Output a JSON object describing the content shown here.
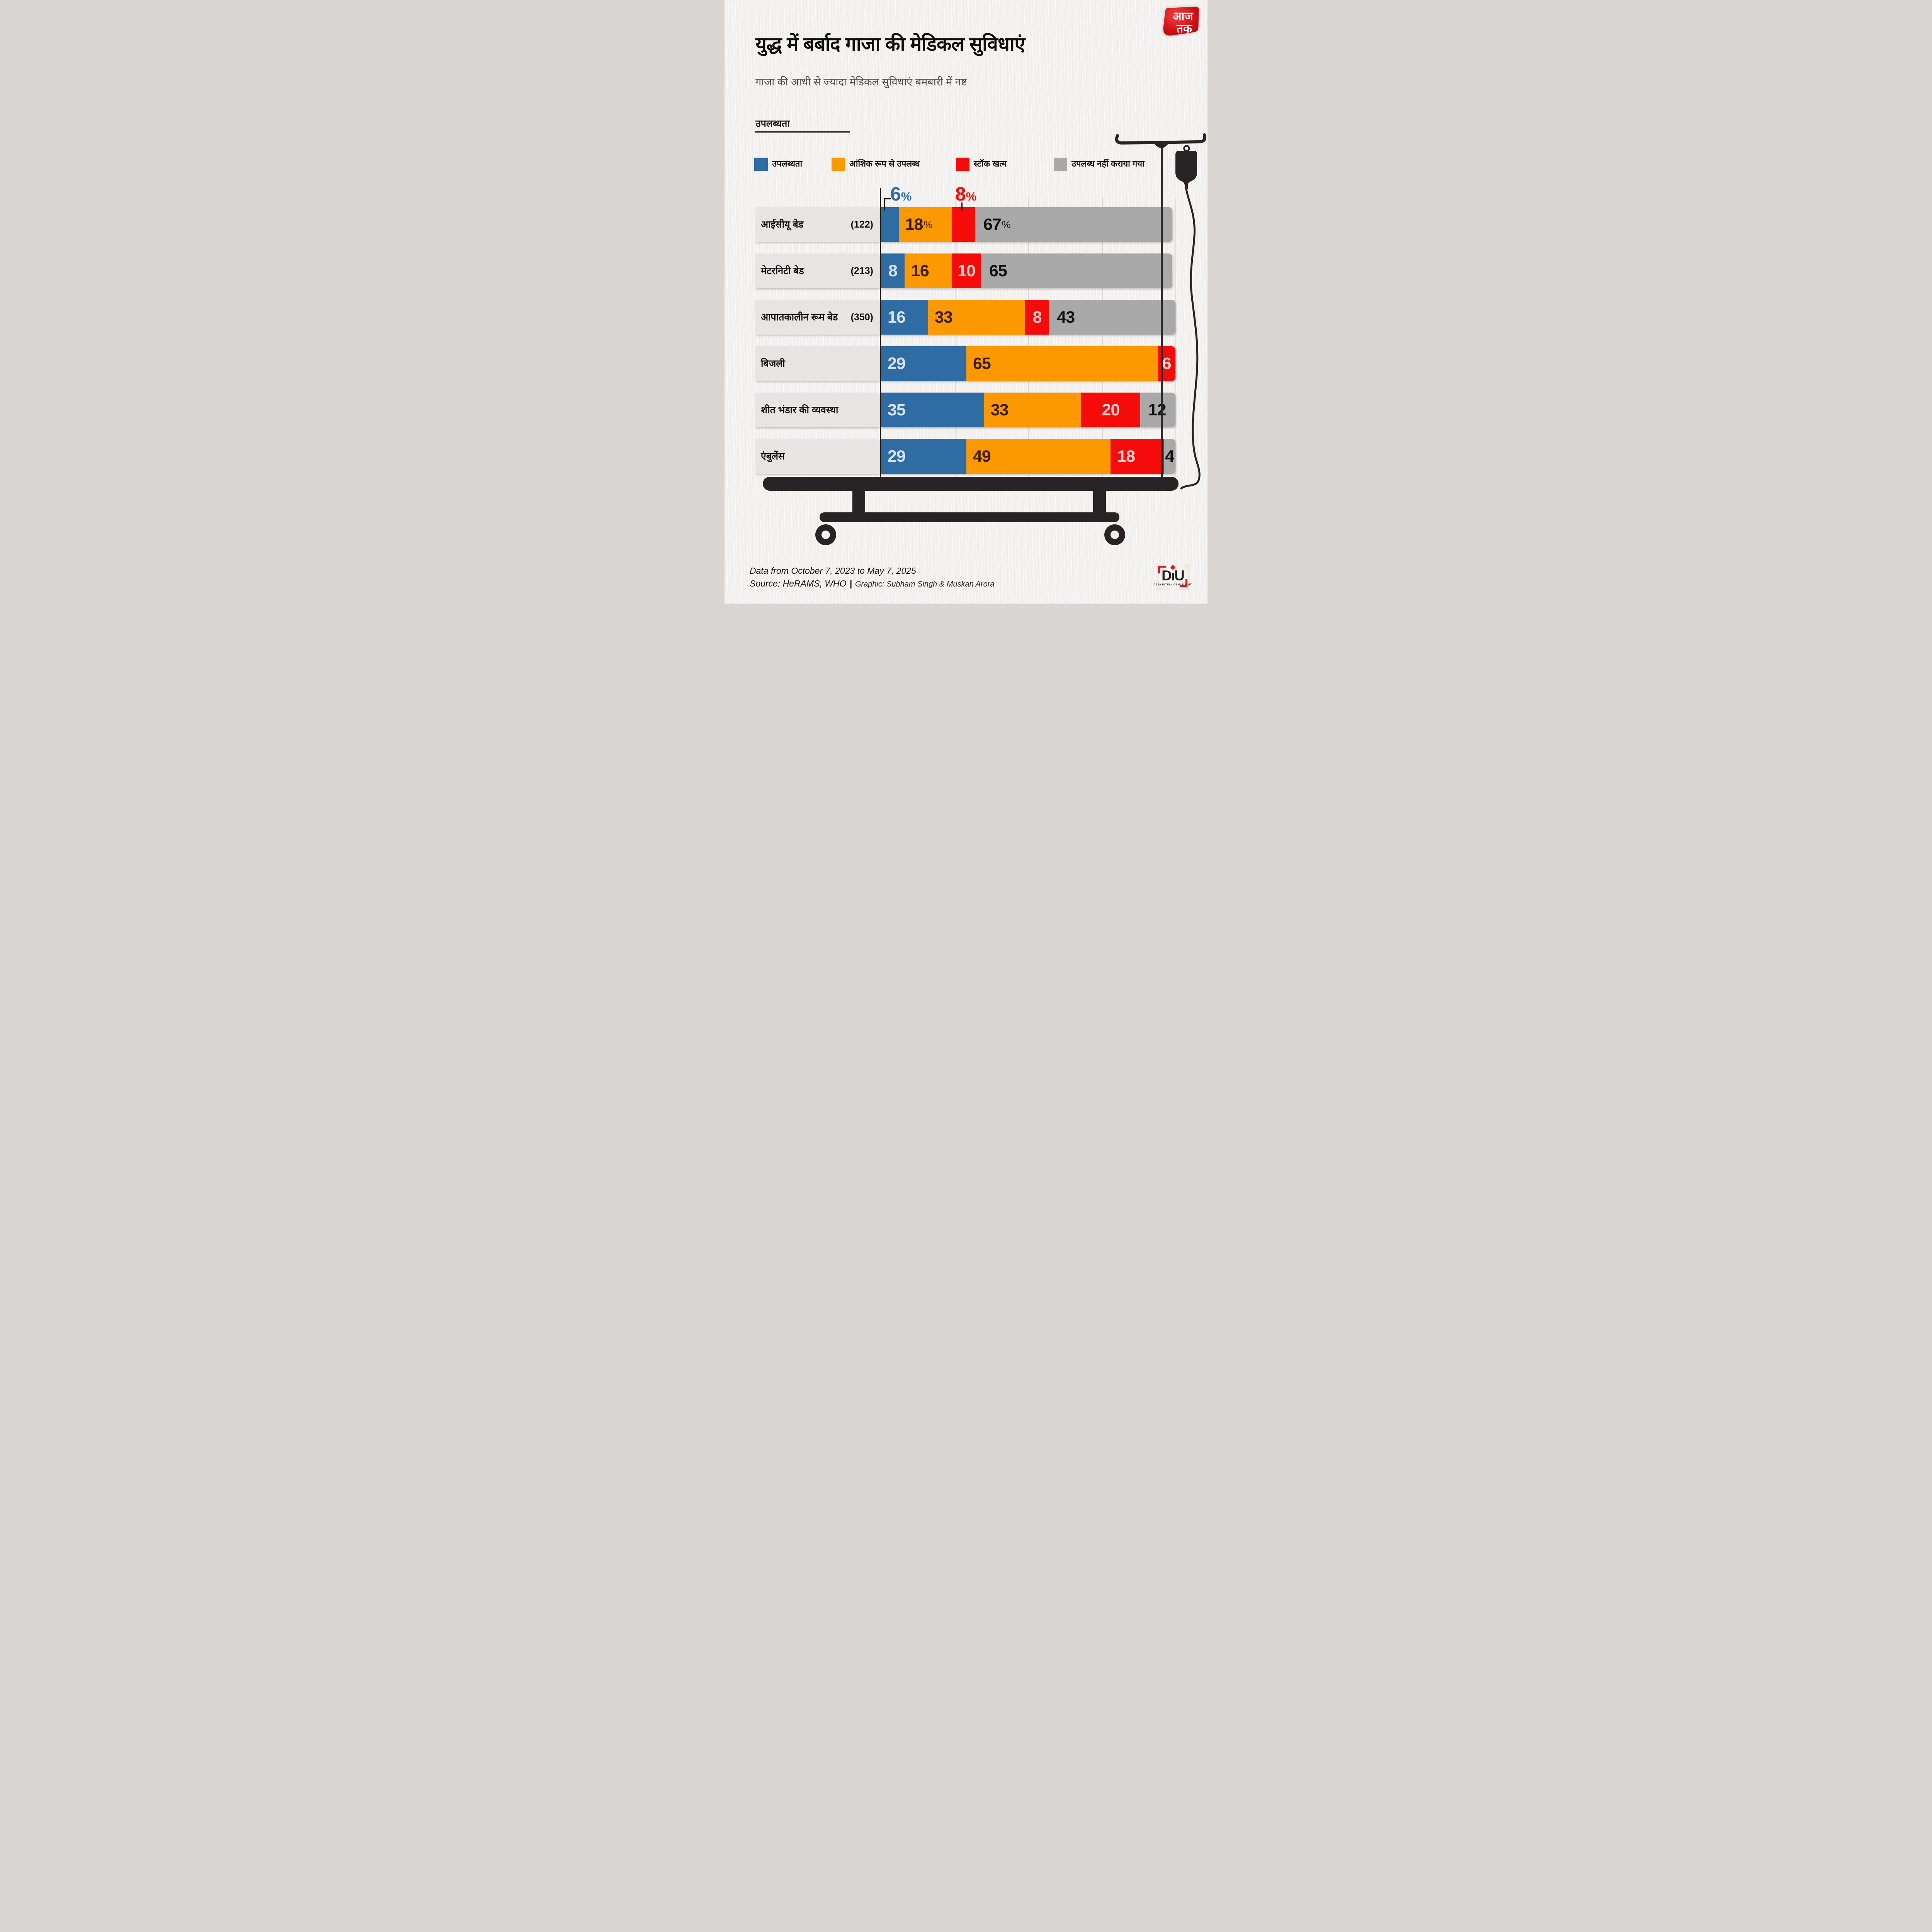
{
  "header": {
    "title": "युद्ध में बर्बाद गाजा की मेडिकल सुविधाएं",
    "subtitle": "गाजा की आधी से ज्यादा मेडिकल सुविधाएं बमबारी में नष्ट"
  },
  "availability_label": "उपलब्धता",
  "legend": {
    "items": [
      {
        "label": "उपलब्धता",
        "color": "#2f6ca3"
      },
      {
        "label": "आंशिक रूप से उपलब्ध",
        "color": "#fd9900"
      },
      {
        "label": "स्टॉक खत्म",
        "color": "#f60b0b"
      },
      {
        "label": "उपलब्ध नहीं कराया गया",
        "color": "#a9a9a9"
      }
    ]
  },
  "chart_data": {
    "type": "bar",
    "orientation": "horizontal",
    "stacked": true,
    "unit": "percent",
    "xlim": [
      0,
      100
    ],
    "gridlines_percent": [
      25,
      50,
      75,
      100
    ],
    "categories": [
      "आईसीयू बेड",
      "मेटरनिटी बेड",
      "आपातकालीन रूम बेड",
      "बिजली",
      "शीत भंडार की व्यवस्था",
      "एंबुलेंस"
    ],
    "category_counts": [
      "(122)",
      "(213)",
      "(350)",
      "",
      "",
      ""
    ],
    "series": [
      {
        "name": "उपलब्धता",
        "color": "#2f6ca3",
        "values": [
          6,
          8,
          16,
          29,
          35,
          29
        ]
      },
      {
        "name": "आंशिक रूप से उपलब्ध",
        "color": "#fd9900",
        "values": [
          18,
          16,
          33,
          65,
          33,
          49
        ]
      },
      {
        "name": "स्टॉक खत्म",
        "color": "#f60b0b",
        "values": [
          8,
          10,
          8,
          6,
          20,
          18
        ]
      },
      {
        "name": "उपलब्ध नहीं कराया गया",
        "color": "#a9a9a9",
        "values": [
          67,
          65,
          43,
          0,
          12,
          4
        ]
      }
    ],
    "value_label_text_colors": [
      "#d5e3f2",
      "#3a1d05",
      "#ffd2d4",
      "#101010"
    ],
    "value_labels": [
      [
        {
          "show": false
        },
        {
          "text": "18",
          "suffix": "%",
          "align": "left"
        },
        {
          "show": false
        },
        {
          "text": "67",
          "suffix": "%",
          "align": "left"
        }
      ],
      [
        {
          "text": "8",
          "align": "center"
        },
        {
          "text": "16",
          "align": "left"
        },
        {
          "text": "10",
          "align": "center"
        },
        {
          "text": "65",
          "align": "left"
        }
      ],
      [
        {
          "text": "16",
          "align": "left"
        },
        {
          "text": "33",
          "align": "left"
        },
        {
          "text": "8",
          "align": "center"
        },
        {
          "text": "43",
          "align": "left"
        }
      ],
      [
        {
          "text": "29",
          "align": "left"
        },
        {
          "text": "65",
          "align": "left"
        },
        {
          "text": "6",
          "align": "center"
        },
        {
          "show": false
        }
      ],
      [
        {
          "text": "35",
          "align": "left"
        },
        {
          "text": "33",
          "align": "left"
        },
        {
          "text": "20",
          "align": "center"
        },
        {
          "text": "12",
          "align": "left"
        }
      ],
      [
        {
          "text": "29",
          "align": "left"
        },
        {
          "text": "49",
          "align": "left"
        },
        {
          "text": "18",
          "align": "left"
        },
        {
          "text": "4",
          "align": "center"
        }
      ]
    ],
    "annotations": [
      {
        "text": "6",
        "suffix": "%",
        "color": "#2f6ca3",
        "target": "ICU bed available segment"
      },
      {
        "text": "8",
        "suffix": "%",
        "color": "#f60b0b",
        "target": "ICU bed stock-out segment"
      }
    ]
  },
  "footer": {
    "period": "Data from October 7, 2023 to May 7, 2025",
    "source": "Source: HeRAMS, WHO",
    "separator": "|",
    "graphic": "Graphic: Subham Singh & Muskan Arora"
  },
  "aajtak": {
    "line1": "आज",
    "line2": "तक"
  },
  "diu": {
    "letters": {
      "d": "D",
      "i": "ı",
      "u": "U"
    },
    "tagline": "DATA INTELLIGENCE UNIT"
  }
}
